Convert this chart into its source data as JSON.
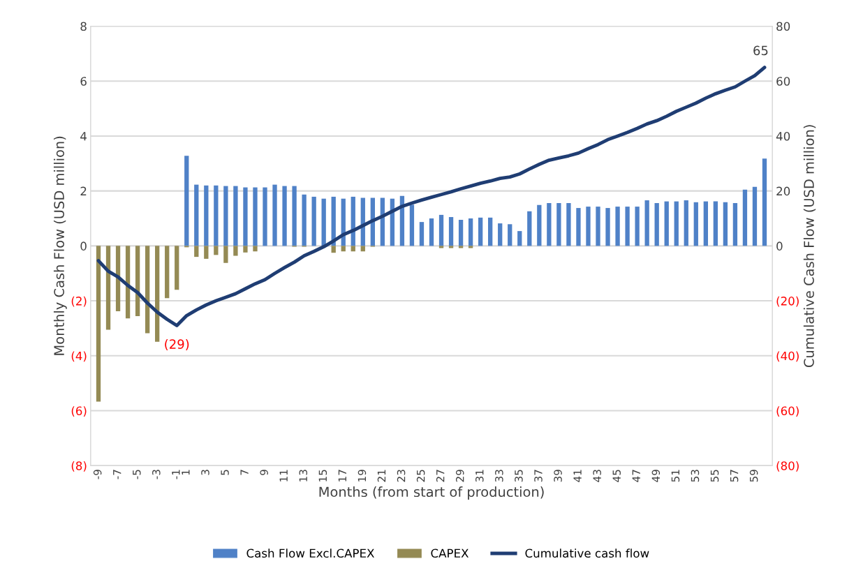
{
  "chart_data": {
    "type": "bar",
    "stacked": true,
    "xlabel": "Months (from start of production)",
    "ylabel": "Monthly Cash Flow (USD million)",
    "y2label": "Cumulative Cash Flow (USD million)",
    "categories": [
      "-9",
      null,
      "-7",
      null,
      "-5",
      null,
      "-3",
      null,
      "-1",
      "1",
      null,
      "3",
      null,
      "5",
      null,
      "7",
      null,
      "9",
      null,
      "11",
      null,
      "13",
      null,
      "15",
      null,
      "17",
      null,
      "19",
      null,
      "21",
      null,
      "23",
      null,
      "25",
      null,
      "27",
      null,
      "29",
      null,
      "31",
      null,
      "33",
      null,
      "35",
      null,
      "37",
      null,
      "39",
      null,
      "41",
      null,
      "43",
      null,
      "45",
      null,
      "47",
      null,
      "49",
      null,
      "51",
      null,
      "53",
      null,
      "55",
      null,
      "57",
      null,
      "59",
      null
    ],
    "series": [
      {
        "name": "Cash Flow Excl.CAPEX",
        "color": "#4f81c7",
        "values": [
          null,
          null,
          null,
          null,
          null,
          null,
          null,
          null,
          null,
          3.28,
          2.23,
          2.2,
          2.2,
          2.18,
          2.18,
          2.13,
          2.13,
          2.13,
          2.23,
          2.18,
          2.18,
          1.87,
          1.79,
          1.72,
          1.79,
          1.72,
          1.79,
          1.75,
          1.75,
          1.75,
          1.72,
          1.82,
          1.5,
          0.87,
          1.0,
          1.13,
          1.05,
          0.95,
          1.0,
          1.03,
          1.03,
          0.82,
          0.79,
          0.54,
          1.26,
          1.49,
          1.56,
          1.56,
          1.56,
          1.38,
          1.43,
          1.43,
          1.38,
          1.43,
          1.43,
          1.43,
          1.66,
          1.56,
          1.62,
          1.62,
          1.66,
          1.59,
          1.62,
          1.62,
          1.59,
          1.56,
          2.05,
          2.15,
          3.18
        ]
      },
      {
        "name": "CAPEX",
        "color": "#948a54",
        "values": [
          -5.67,
          -3.05,
          -2.38,
          -2.64,
          -2.56,
          -3.18,
          -3.49,
          -1.9,
          -1.6,
          -0.05,
          -0.4,
          -0.47,
          -0.33,
          -0.62,
          -0.36,
          -0.24,
          -0.2,
          null,
          null,
          null,
          -0.03,
          -0.03,
          null,
          null,
          -0.25,
          -0.2,
          -0.2,
          -0.2,
          -0.03,
          null,
          null,
          null,
          null,
          null,
          null,
          -0.08,
          -0.08,
          -0.08,
          -0.08,
          null,
          null,
          null,
          null,
          null,
          null,
          null,
          null,
          null,
          null,
          null,
          null,
          null,
          null,
          null,
          null,
          null,
          null,
          null,
          null,
          null,
          null,
          null,
          null,
          null,
          null,
          null,
          null,
          null,
          null
        ]
      },
      {
        "name": "Cumulative cash flow",
        "type": "line",
        "axis": "y2",
        "color": "#1f3d73",
        "values": [
          -5.4,
          -9.2,
          -11.3,
          -14.4,
          -17,
          -20.8,
          -24.1,
          -26.7,
          -29,
          -25.4,
          -23.3,
          -21.5,
          -20,
          -18.7,
          -17.4,
          -15.6,
          -13.8,
          -12.3,
          -10,
          -7.9,
          -5.9,
          -3.6,
          -2,
          -0.3,
          1.8,
          4.1,
          5.6,
          7.4,
          9.2,
          10.8,
          12.6,
          14.4,
          15.6,
          16.7,
          17.7,
          18.7,
          19.7,
          20.8,
          21.8,
          22.8,
          23.6,
          24.6,
          25.1,
          26.2,
          28,
          29.7,
          31.2,
          32,
          32.8,
          33.8,
          35.4,
          36.9,
          38.7,
          40,
          41.3,
          42.8,
          44.4,
          45.6,
          47.2,
          49,
          50.5,
          52,
          53.8,
          55.4,
          56.7,
          57.9,
          60,
          62,
          65
        ],
        "value_labels": [
          null,
          null,
          null,
          null,
          null,
          null,
          null,
          null,
          "(29)",
          null,
          null,
          null,
          null,
          null,
          null,
          null,
          null,
          null,
          null,
          null,
          null,
          null,
          null,
          null,
          null,
          null,
          null,
          null,
          null,
          null,
          null,
          null,
          null,
          null,
          null,
          null,
          null,
          null,
          null,
          null,
          null,
          null,
          null,
          null,
          null,
          null,
          null,
          null,
          null,
          null,
          null,
          null,
          null,
          null,
          null,
          null,
          null,
          null,
          null,
          null,
          null,
          null,
          null,
          null,
          null,
          null,
          null,
          null,
          "65"
        ]
      }
    ],
    "ylim": [
      -8,
      8
    ],
    "yticks": [
      8,
      6,
      4,
      2,
      0,
      {
        "value": -2,
        "label": "(2)"
      },
      {
        "value": -4,
        "label": "(4)"
      },
      {
        "value": -6,
        "label": "(6)"
      },
      {
        "value": -8,
        "label": "(8)"
      }
    ],
    "y2lim": [
      -80,
      80
    ],
    "y2ticks": [
      80,
      60,
      40,
      20,
      0,
      {
        "value": -20,
        "label": "(20)"
      },
      {
        "value": -40,
        "label": "(40)"
      },
      {
        "value": -60,
        "label": "(60)"
      },
      {
        "value": -80,
        "label": "(80)"
      }
    ],
    "grid": "y",
    "legend": "bottom"
  }
}
